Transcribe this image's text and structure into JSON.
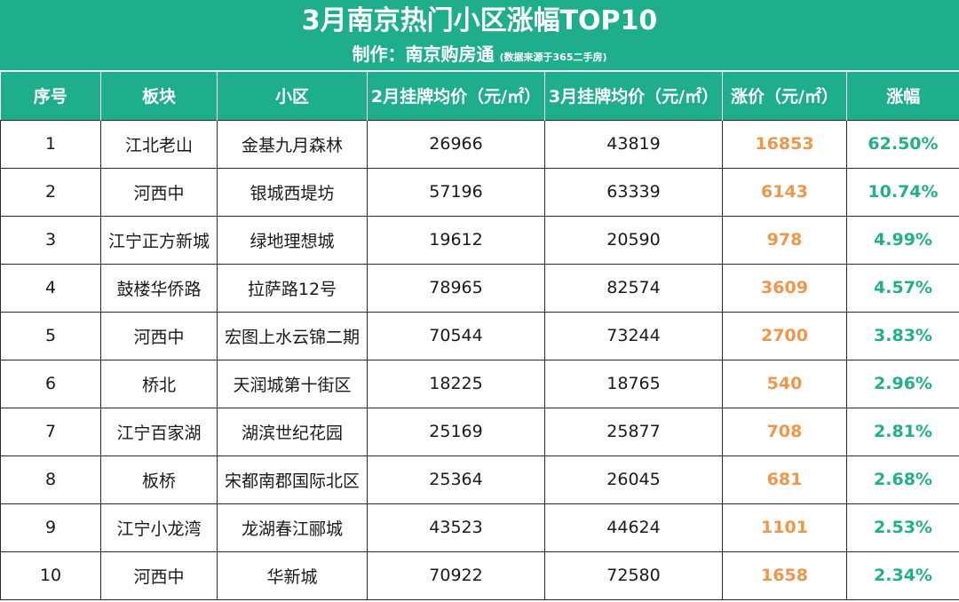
{
  "title": "3月南京热门小区涨幅TOP10",
  "subtitle": {
    "maker": "制作：南京购房通",
    "source": "(数据来源于365二手房)"
  },
  "colors": {
    "header_bg": "#1fae8c",
    "rise_text": "#f0964a",
    "pct_text": "#22b089"
  },
  "chart_data": {
    "type": "table",
    "columns": [
      "序号",
      "板块",
      "小区",
      "2月挂牌均价（元/㎡）",
      "3月挂牌均价（元/㎡）",
      "涨价（元/㎡）",
      "涨幅"
    ],
    "rows": [
      [
        "1",
        "江北老山",
        "金基九月森林",
        "26966",
        "43819",
        "16853",
        "62.50%"
      ],
      [
        "2",
        "河西中",
        "银城西堤坊",
        "57196",
        "63339",
        "6143",
        "10.74%"
      ],
      [
        "3",
        "江宁正方新城",
        "绿地理想城",
        "19612",
        "20590",
        "978",
        "4.99%"
      ],
      [
        "4",
        "鼓楼华侨路",
        "拉萨路12号",
        "78965",
        "82574",
        "3609",
        "4.57%"
      ],
      [
        "5",
        "河西中",
        "宏图上水云锦二期",
        "70544",
        "73244",
        "2700",
        "3.83%"
      ],
      [
        "6",
        "桥北",
        "天润城第十街区",
        "18225",
        "18765",
        "540",
        "2.96%"
      ],
      [
        "7",
        "江宁百家湖",
        "湖滨世纪花园",
        "25169",
        "25877",
        "708",
        "2.81%"
      ],
      [
        "8",
        "板桥",
        "宋都南郡国际北区",
        "25364",
        "26045",
        "681",
        "2.68%"
      ],
      [
        "9",
        "江宁小龙湾",
        "龙湖春江郦城",
        "43523",
        "44624",
        "1101",
        "2.53%"
      ],
      [
        "10",
        "河西中",
        "华新城",
        "70922",
        "72580",
        "1658",
        "2.34%"
      ]
    ]
  }
}
